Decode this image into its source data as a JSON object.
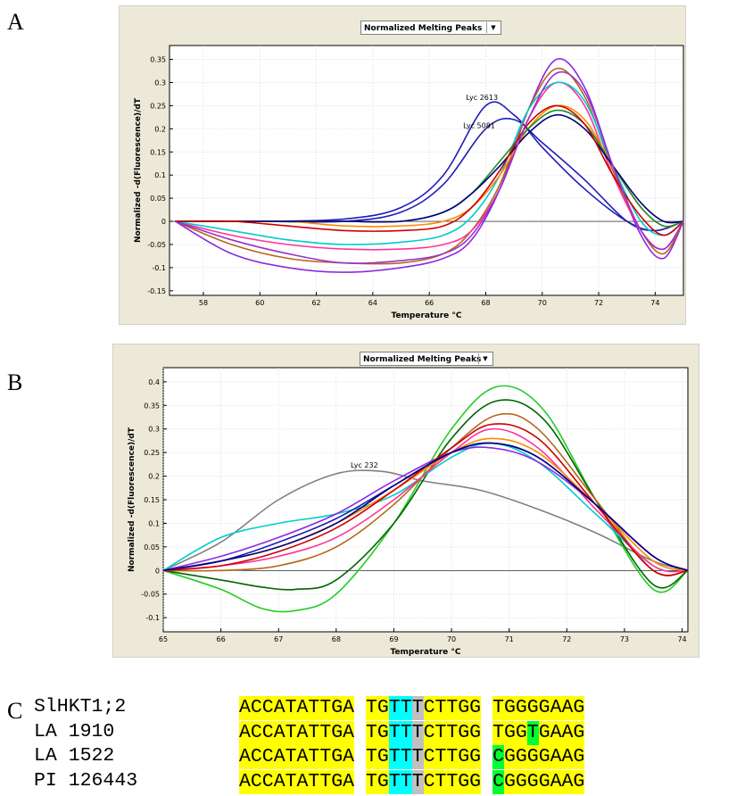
{
  "panels": {
    "a": "A",
    "b": "B",
    "c": "C"
  },
  "chart_data": [
    {
      "type": "line",
      "dropdown_label": "Normalized Melting Peaks",
      "xlabel": "Temperature °C",
      "ylabel": "Normalized -d(Fluorescence)/dT",
      "xlim": [
        56.8,
        75
      ],
      "ylim": [
        -0.16,
        0.38
      ],
      "xticks": [
        58,
        60,
        62,
        64,
        66,
        68,
        70,
        72,
        74
      ],
      "yticks": [
        -0.15,
        -0.1,
        -0.05,
        0,
        0.05,
        0.1,
        0.15,
        0.2,
        0.25,
        0.3,
        0.35
      ],
      "ytick_labels": [
        "-0.15",
        "-0.1",
        "-0.05",
        "0",
        "0.05",
        "0.1",
        "0.15",
        "0.2",
        "0.25",
        "0.3",
        "0.35"
      ],
      "grid": true,
      "annotations": [
        {
          "text": "Lyc 2613",
          "x": 67.3,
          "y": 0.262
        },
        {
          "text": "Lyc 5081",
          "x": 67.2,
          "y": 0.202
        }
      ],
      "series": [
        {
          "color": "#1f1fb4",
          "x": [
            57,
            60,
            63,
            65,
            66.5,
            68,
            69,
            70,
            71.5,
            73,
            74,
            75
          ],
          "y": [
            0,
            0,
            0.005,
            0.03,
            0.1,
            0.25,
            0.23,
            0.16,
            0.07,
            0.0,
            -0.02,
            0
          ]
        },
        {
          "color": "#1f1fb4",
          "x": [
            57,
            60,
            63,
            65,
            66.5,
            68,
            69,
            70,
            71.5,
            73,
            74,
            75
          ],
          "y": [
            0,
            0,
            0.0,
            0.02,
            0.08,
            0.2,
            0.22,
            0.17,
            0.09,
            0.0,
            -0.02,
            0
          ]
        },
        {
          "color": "#8a2be2",
          "x": [
            57,
            59,
            61,
            63,
            65,
            66.5,
            67.5,
            68.5,
            69.5,
            70.5,
            71.5,
            72.5,
            73.5,
            74.3,
            75
          ],
          "y": [
            0,
            -0.07,
            -0.1,
            -0.11,
            -0.1,
            -0.08,
            -0.04,
            0.07,
            0.24,
            0.35,
            0.29,
            0.12,
            -0.03,
            -0.08,
            0
          ]
        },
        {
          "color": "#b5651d",
          "x": [
            57,
            59,
            61,
            63,
            65,
            66.5,
            67.5,
            68.5,
            69.5,
            70.5,
            71.5,
            72.5,
            73.5,
            74.3,
            75
          ],
          "y": [
            0,
            -0.05,
            -0.08,
            -0.09,
            -0.09,
            -0.07,
            -0.02,
            0.08,
            0.24,
            0.33,
            0.27,
            0.11,
            -0.02,
            -0.07,
            0
          ]
        },
        {
          "color": "#ff3399",
          "x": [
            57,
            59,
            61,
            63,
            65,
            66.5,
            67.5,
            68.5,
            69.5,
            70.5,
            71.5,
            72.5,
            73.5,
            74.3,
            75
          ],
          "y": [
            0,
            -0.03,
            -0.05,
            -0.06,
            -0.06,
            -0.05,
            -0.02,
            0.07,
            0.22,
            0.3,
            0.25,
            0.1,
            -0.02,
            -0.06,
            0
          ]
        },
        {
          "color": "#00cccc",
          "x": [
            57,
            59,
            61,
            63,
            65,
            66.5,
            67.5,
            68.5,
            69.5,
            70.5,
            71.5,
            72.5,
            73.5,
            74.3,
            75
          ],
          "y": [
            0,
            -0.02,
            -0.04,
            -0.05,
            -0.045,
            -0.03,
            0.01,
            0.1,
            0.24,
            0.3,
            0.26,
            0.12,
            0.0,
            -0.03,
            0
          ]
        },
        {
          "color": "#ff8800",
          "x": [
            57,
            59,
            61,
            63,
            65,
            66.5,
            67.5,
            68.5,
            69.5,
            70.5,
            71.5,
            72.5,
            73.5,
            74.3,
            75
          ],
          "y": [
            0,
            0,
            0,
            -0.01,
            -0.01,
            0.0,
            0.03,
            0.1,
            0.2,
            0.25,
            0.22,
            0.12,
            0.03,
            -0.01,
            0
          ]
        },
        {
          "color": "#228b22",
          "x": [
            57,
            59,
            61,
            63,
            65,
            66.5,
            67.5,
            68.5,
            69.5,
            70.5,
            71.5,
            72.5,
            73.5,
            74.3,
            75
          ],
          "y": [
            0,
            0,
            0,
            0,
            0.0,
            0.02,
            0.06,
            0.13,
            0.2,
            0.24,
            0.21,
            0.12,
            0.03,
            -0.01,
            0
          ]
        },
        {
          "color": "#000080",
          "x": [
            57,
            59,
            61,
            63,
            65,
            66.5,
            67.5,
            68.5,
            69.5,
            70.5,
            71.5,
            72.5,
            73.5,
            74.3,
            75
          ],
          "y": [
            0,
            0,
            0,
            0,
            0.0,
            0.02,
            0.06,
            0.12,
            0.19,
            0.23,
            0.2,
            0.12,
            0.04,
            0.0,
            0
          ]
        },
        {
          "color": "#cc0000",
          "x": [
            57,
            59,
            61,
            63,
            65,
            66.5,
            67.5,
            68.5,
            69.5,
            70.5,
            71.5,
            72.5,
            73.5,
            74.3,
            75
          ],
          "y": [
            0,
            0,
            -0.01,
            -0.02,
            -0.02,
            -0.01,
            0.03,
            0.11,
            0.21,
            0.25,
            0.21,
            0.1,
            0.01,
            -0.03,
            0
          ]
        },
        {
          "color": "#9932cc",
          "x": [
            57,
            59,
            61,
            63,
            65,
            66.5,
            67.5,
            68.5,
            69.5,
            70.5,
            71.5,
            72.5,
            73.5,
            74.3,
            75
          ],
          "y": [
            0,
            -0.04,
            -0.07,
            -0.09,
            -0.085,
            -0.07,
            -0.03,
            0.07,
            0.22,
            0.32,
            0.28,
            0.12,
            -0.02,
            -0.06,
            0
          ]
        }
      ]
    },
    {
      "type": "line",
      "dropdown_label": "Normalized Melting Peaks",
      "xlabel": "Temperature °C",
      "ylabel": "Normalized -d(Fluorescence)/dT",
      "xlim": [
        65,
        74.1
      ],
      "ylim": [
        -0.13,
        0.43
      ],
      "xticks": [
        65,
        66,
        67,
        68,
        69,
        70,
        71,
        72,
        73,
        74
      ],
      "yticks": [
        -0.1,
        -0.05,
        0,
        0.05,
        0.1,
        0.15,
        0.2,
        0.25,
        0.3,
        0.35,
        0.4
      ],
      "ytick_labels": [
        "-0.1",
        "-0.05",
        "0",
        "0.05",
        "0.1",
        "0.15",
        "0.2",
        "0.25",
        "0.3",
        "0.35",
        "0.4"
      ],
      "grid": true,
      "annotations": [
        {
          "text": "Lyc 232",
          "x": 68.25,
          "y": 0.218
        }
      ],
      "series": [
        {
          "color": "#808080",
          "x": [
            65,
            66,
            67,
            68,
            68.8,
            69.5,
            70.5,
            71.5,
            72.5,
            73.5,
            74.1
          ],
          "y": [
            0,
            0.06,
            0.15,
            0.205,
            0.21,
            0.19,
            0.17,
            0.13,
            0.08,
            0.02,
            0
          ]
        },
        {
          "color": "#22cc22",
          "x": [
            65,
            66,
            66.7,
            67.3,
            68,
            69,
            70,
            70.8,
            71.6,
            72.5,
            73.5,
            74.1
          ],
          "y": [
            0,
            -0.04,
            -0.08,
            -0.085,
            -0.05,
            0.1,
            0.3,
            0.39,
            0.34,
            0.15,
            -0.04,
            0
          ]
        },
        {
          "color": "#006400",
          "x": [
            65,
            66,
            66.7,
            67.3,
            68,
            69,
            70,
            70.8,
            71.6,
            72.5,
            73.5,
            74.1
          ],
          "y": [
            0,
            -0.02,
            -0.035,
            -0.04,
            -0.02,
            0.1,
            0.28,
            0.36,
            0.32,
            0.15,
            -0.03,
            0
          ]
        },
        {
          "color": "#00cccc",
          "x": [
            65,
            66,
            67,
            68,
            69,
            70,
            70.7,
            71.5,
            72.5,
            73.5,
            74.1
          ],
          "y": [
            0,
            0.07,
            0.1,
            0.12,
            0.16,
            0.24,
            0.27,
            0.23,
            0.12,
            0.01,
            0
          ]
        },
        {
          "color": "#b5651d",
          "x": [
            65,
            66,
            67,
            68,
            69,
            70,
            70.8,
            71.5,
            72.5,
            73.5,
            74.1
          ],
          "y": [
            0,
            0.0,
            0.01,
            0.05,
            0.14,
            0.26,
            0.33,
            0.3,
            0.15,
            0.0,
            0
          ]
        },
        {
          "color": "#ff3399",
          "x": [
            65,
            66,
            67,
            68,
            69,
            70,
            70.7,
            71.5,
            72.5,
            73.5,
            74.1
          ],
          "y": [
            0,
            0.01,
            0.03,
            0.07,
            0.15,
            0.25,
            0.3,
            0.26,
            0.13,
            0.01,
            0
          ]
        },
        {
          "color": "#ff8800",
          "x": [
            65,
            66,
            67,
            68,
            69,
            70,
            70.7,
            71.5,
            72.5,
            73.5,
            74.1
          ],
          "y": [
            0,
            0.02,
            0.05,
            0.1,
            0.17,
            0.25,
            0.28,
            0.25,
            0.14,
            0.02,
            0
          ]
        },
        {
          "color": "#1f1fb4",
          "x": [
            65,
            66,
            67,
            68,
            69,
            70,
            70.7,
            71.5,
            72.5,
            73.5,
            74.1
          ],
          "y": [
            0,
            0.02,
            0.06,
            0.11,
            0.18,
            0.25,
            0.27,
            0.24,
            0.14,
            0.03,
            0
          ]
        },
        {
          "color": "#8a2be2",
          "x": [
            65,
            66,
            67,
            68,
            69,
            70,
            70.7,
            71.5,
            72.5,
            73.5,
            74.1
          ],
          "y": [
            0,
            0.03,
            0.07,
            0.12,
            0.19,
            0.25,
            0.26,
            0.23,
            0.14,
            0.03,
            0
          ]
        },
        {
          "color": "#cc0000",
          "x": [
            65,
            66,
            67,
            68,
            69,
            70,
            70.7,
            71.5,
            72.5,
            73.5,
            74.1
          ],
          "y": [
            0,
            0.01,
            0.04,
            0.09,
            0.17,
            0.26,
            0.31,
            0.28,
            0.14,
            0.0,
            0
          ]
        },
        {
          "color": "#000080",
          "x": [
            65,
            66,
            67,
            68,
            69,
            70,
            70.7,
            71.5,
            72.5,
            73.5,
            74.1
          ],
          "y": [
            0,
            0.02,
            0.05,
            0.1,
            0.18,
            0.25,
            0.27,
            0.24,
            0.14,
            0.03,
            0
          ]
        }
      ]
    }
  ],
  "alignment": {
    "rows": [
      {
        "name": "SlHKT1;2",
        "segments": [
          [
            "y",
            "ACCATATTGA"
          ],
          [
            "gap",
            ""
          ],
          [
            "y",
            "TG"
          ],
          [
            "c",
            "TT"
          ],
          [
            "g",
            "T"
          ],
          [
            "y",
            "CTTGG"
          ],
          [
            "gap",
            ""
          ],
          [
            "y",
            "TGGGGAAG"
          ]
        ]
      },
      {
        "name": "LA 1910",
        "segments": [
          [
            "y",
            "ACCATATTGA"
          ],
          [
            "gap",
            ""
          ],
          [
            "y",
            "TG"
          ],
          [
            "c",
            "TT"
          ],
          [
            "g",
            "T"
          ],
          [
            "y",
            "CTTGG"
          ],
          [
            "gap",
            ""
          ],
          [
            "y",
            "TGG"
          ],
          [
            "n",
            "T"
          ],
          [
            "y",
            "GAAG"
          ]
        ]
      },
      {
        "name": "LA 1522",
        "segments": [
          [
            "y",
            "ACCATATTGA"
          ],
          [
            "gap",
            ""
          ],
          [
            "y",
            "TG"
          ],
          [
            "c",
            "TT"
          ],
          [
            "g",
            "T"
          ],
          [
            "y",
            "CTTGG"
          ],
          [
            "gap",
            ""
          ],
          [
            "n",
            "C"
          ],
          [
            "y",
            "GGGGAAG"
          ]
        ]
      },
      {
        "name": "PI 126443",
        "segments": [
          [
            "y",
            "ACCATATTGA"
          ],
          [
            "gap",
            ""
          ],
          [
            "y",
            "TG"
          ],
          [
            "c",
            "TT"
          ],
          [
            "g",
            "T"
          ],
          [
            "y",
            "CTTGG"
          ],
          [
            "gap",
            ""
          ],
          [
            "n",
            "C"
          ],
          [
            "y",
            "GGGGAAG"
          ]
        ]
      }
    ]
  }
}
